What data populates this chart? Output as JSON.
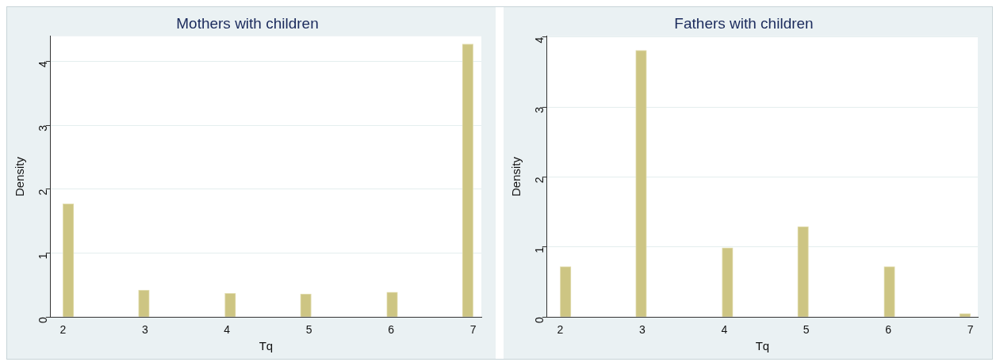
{
  "chart_data": [
    {
      "type": "histogram",
      "title": "Mothers with children",
      "xlabel": "Tq",
      "ylabel": "Density",
      "color": "#cdc583",
      "bins": [
        2,
        2.132,
        2.263,
        2.395,
        2.526,
        2.658,
        2.789,
        2.921,
        3.053,
        3.184,
        3.316,
        3.447,
        3.579,
        3.711,
        3.842,
        3.974,
        4.105,
        4.237,
        4.368,
        4.5,
        4.632,
        4.763,
        4.895,
        5.026,
        5.158,
        5.289,
        5.421,
        5.553,
        5.684,
        5.816,
        5.947,
        6.079,
        6.211,
        6.342,
        6.474,
        6.605,
        6.737,
        6.868,
        7
      ],
      "values": [
        1.77,
        0,
        0,
        0,
        0,
        0,
        0,
        0.42,
        0,
        0,
        0,
        0,
        0,
        0,
        0,
        0.37,
        0,
        0,
        0,
        0,
        0,
        0,
        0.36,
        0,
        0,
        0,
        0,
        0,
        0,
        0,
        0.39,
        0,
        0,
        0,
        0,
        0,
        0,
        4.27
      ],
      "xlim": [
        1.85,
        7.1
      ],
      "xticks": [
        2,
        3,
        4,
        5,
        6,
        7
      ],
      "ylim": [
        0,
        4.39
      ],
      "yticks": [
        0,
        1,
        2,
        3,
        4
      ],
      "grid": "y",
      "legend": false
    },
    {
      "type": "histogram",
      "title": "Fathers with children",
      "xlabel": "Tq",
      "ylabel": "Density",
      "color": "#cdc583",
      "bins": [
        2,
        2.132,
        2.263,
        2.395,
        2.526,
        2.658,
        2.789,
        2.921,
        3.053,
        3.184,
        3.316,
        3.447,
        3.579,
        3.711,
        3.842,
        3.974,
        4.105,
        4.237,
        4.368,
        4.5,
        4.632,
        4.763,
        4.895,
        5.026,
        5.158,
        5.289,
        5.421,
        5.553,
        5.684,
        5.816,
        5.947,
        6.079,
        6.211,
        6.342,
        6.474,
        6.605,
        6.737,
        6.868,
        7
      ],
      "values": [
        0.72,
        0,
        0,
        0,
        0,
        0,
        0,
        3.81,
        0,
        0,
        0,
        0,
        0,
        0,
        0,
        0.99,
        0,
        0,
        0,
        0,
        0,
        0,
        1.29,
        0,
        0,
        0,
        0,
        0,
        0,
        0,
        0.72,
        0,
        0,
        0,
        0,
        0,
        0,
        0.05
      ],
      "xlim": [
        1.84,
        7.09
      ],
      "xticks": [
        2,
        3,
        4,
        5,
        6,
        7
      ],
      "ylim": [
        0,
        4.01
      ],
      "yticks": [
        0,
        1,
        2,
        3,
        4
      ],
      "grid": "y",
      "legend": false
    }
  ]
}
